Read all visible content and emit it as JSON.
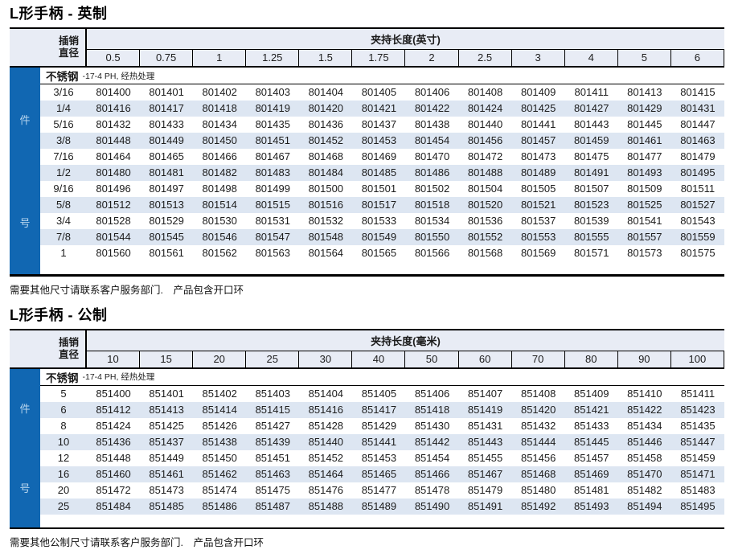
{
  "colors": {
    "sidebar_blue": "#1167b2",
    "sidebar_text": "#b9d6ee",
    "header_bg": "#e8ecf5",
    "zebra_stripe": "#dde6f2",
    "border": "#000000"
  },
  "tables": [
    {
      "title": "L形手柄 - 英制",
      "pin_diameter_label": [
        "插销",
        "直径"
      ],
      "group_header": "夹持长度(英寸)",
      "columns": [
        "0.5",
        "0.75",
        "1",
        "1.25",
        "1.5",
        "1.75",
        "2",
        "2.5",
        "3",
        "4",
        "5",
        "6"
      ],
      "material": {
        "name": "不锈钢",
        "spec": "-17-4 PH, 经热处理"
      },
      "sidebar_chars": [
        "件",
        "号"
      ],
      "rows": [
        {
          "dia": "3/16",
          "values": [
            "801400",
            "801401",
            "801402",
            "801403",
            "801404",
            "801405",
            "801406",
            "801408",
            "801409",
            "801411",
            "801413",
            "801415"
          ]
        },
        {
          "dia": "1/4",
          "values": [
            "801416",
            "801417",
            "801418",
            "801419",
            "801420",
            "801421",
            "801422",
            "801424",
            "801425",
            "801427",
            "801429",
            "801431"
          ]
        },
        {
          "dia": "5/16",
          "values": [
            "801432",
            "801433",
            "801434",
            "801435",
            "801436",
            "801437",
            "801438",
            "801440",
            "801441",
            "801443",
            "801445",
            "801447"
          ]
        },
        {
          "dia": "3/8",
          "values": [
            "801448",
            "801449",
            "801450",
            "801451",
            "801452",
            "801453",
            "801454",
            "801456",
            "801457",
            "801459",
            "801461",
            "801463"
          ]
        },
        {
          "dia": "7/16",
          "values": [
            "801464",
            "801465",
            "801466",
            "801467",
            "801468",
            "801469",
            "801470",
            "801472",
            "801473",
            "801475",
            "801477",
            "801479"
          ]
        },
        {
          "dia": "1/2",
          "values": [
            "801480",
            "801481",
            "801482",
            "801483",
            "801484",
            "801485",
            "801486",
            "801488",
            "801489",
            "801491",
            "801493",
            "801495"
          ]
        },
        {
          "dia": "9/16",
          "values": [
            "801496",
            "801497",
            "801498",
            "801499",
            "801500",
            "801501",
            "801502",
            "801504",
            "801505",
            "801507",
            "801509",
            "801511"
          ]
        },
        {
          "dia": "5/8",
          "values": [
            "801512",
            "801513",
            "801514",
            "801515",
            "801516",
            "801517",
            "801518",
            "801520",
            "801521",
            "801523",
            "801525",
            "801527"
          ]
        },
        {
          "dia": "3/4",
          "values": [
            "801528",
            "801529",
            "801530",
            "801531",
            "801532",
            "801533",
            "801534",
            "801536",
            "801537",
            "801539",
            "801541",
            "801543"
          ]
        },
        {
          "dia": "7/8",
          "values": [
            "801544",
            "801545",
            "801546",
            "801547",
            "801548",
            "801549",
            "801550",
            "801552",
            "801553",
            "801555",
            "801557",
            "801559"
          ]
        },
        {
          "dia": "1",
          "values": [
            "801560",
            "801561",
            "801562",
            "801563",
            "801564",
            "801565",
            "801566",
            "801568",
            "801569",
            "801571",
            "801573",
            "801575"
          ]
        }
      ],
      "note": "需要其他尺寸请联系客户服务部门.　产品包含开口环"
    },
    {
      "title": "L形手柄 - 公制",
      "pin_diameter_label": [
        "插销",
        "直径"
      ],
      "group_header": "夹持长度(毫米)",
      "columns": [
        "10",
        "15",
        "20",
        "25",
        "30",
        "40",
        "50",
        "60",
        "70",
        "80",
        "90",
        "100"
      ],
      "material": {
        "name": "不锈钢",
        "spec": "-17-4 PH, 经热处理"
      },
      "sidebar_chars": [
        "件",
        "号"
      ],
      "rows": [
        {
          "dia": "5",
          "values": [
            "851400",
            "851401",
            "851402",
            "851403",
            "851404",
            "851405",
            "851406",
            "851407",
            "851408",
            "851409",
            "851410",
            "851411"
          ]
        },
        {
          "dia": "6",
          "values": [
            "851412",
            "851413",
            "851414",
            "851415",
            "851416",
            "851417",
            "851418",
            "851419",
            "851420",
            "851421",
            "851422",
            "851423"
          ]
        },
        {
          "dia": "8",
          "values": [
            "851424",
            "851425",
            "851426",
            "851427",
            "851428",
            "851429",
            "851430",
            "851431",
            "851432",
            "851433",
            "851434",
            "851435"
          ]
        },
        {
          "dia": "10",
          "values": [
            "851436",
            "851437",
            "851438",
            "851439",
            "851440",
            "851441",
            "851442",
            "851443",
            "851444",
            "851445",
            "851446",
            "851447"
          ]
        },
        {
          "dia": "12",
          "values": [
            "851448",
            "851449",
            "851450",
            "851451",
            "851452",
            "851453",
            "851454",
            "851455",
            "851456",
            "851457",
            "851458",
            "851459"
          ]
        },
        {
          "dia": "16",
          "values": [
            "851460",
            "851461",
            "851462",
            "851463",
            "851464",
            "851465",
            "851466",
            "851467",
            "851468",
            "851469",
            "851470",
            "851471"
          ]
        },
        {
          "dia": "20",
          "values": [
            "851472",
            "851473",
            "851474",
            "851475",
            "851476",
            "851477",
            "851478",
            "851479",
            "851480",
            "851481",
            "851482",
            "851483"
          ]
        },
        {
          "dia": "25",
          "values": [
            "851484",
            "851485",
            "851486",
            "851487",
            "851488",
            "851489",
            "851490",
            "851491",
            "851492",
            "851493",
            "851494",
            "851495"
          ]
        }
      ],
      "note": "需要其他公制尺寸请联系客户服务部门.　产品包含开口环"
    }
  ]
}
